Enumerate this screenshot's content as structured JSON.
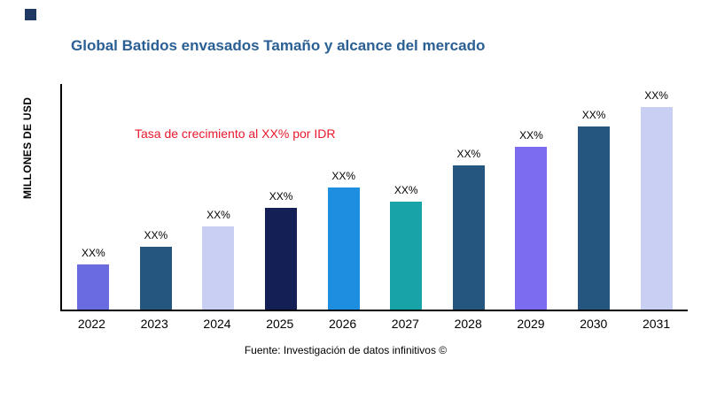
{
  "title": "Global Batidos envasados Tamaño y alcance del mercado",
  "title_color": "#2a5f94",
  "accent_square_color": "#1f3864",
  "annotation": {
    "text": "Tasa de crecimiento al XX% por IDR",
    "color": "#e8192c"
  },
  "source": "Fuente: Investigación de datos infinitivos ©",
  "chart_data": {
    "type": "bar",
    "title": "Global Batidos envasados Tamaño y alcance del mercado",
    "xlabel": "",
    "ylabel": "MILLONES DE USD",
    "categories": [
      "2022",
      "2023",
      "2024",
      "2025",
      "2026",
      "2027",
      "2028",
      "2029",
      "2030",
      "2031"
    ],
    "values": [
      20,
      28,
      37,
      45,
      54,
      48,
      64,
      72,
      81,
      90
    ],
    "bar_labels": [
      "XX%",
      "XX%",
      "XX%",
      "XX%",
      "XX%",
      "XX%",
      "XX%",
      "XX%",
      "XX%",
      "XX%"
    ],
    "bar_colors": [
      "#6b6be0",
      "#25567f",
      "#c9cff2",
      "#141f55",
      "#1e8fe0",
      "#17a3a8",
      "#25567f",
      "#7c6cf0",
      "#25567f",
      "#c9cff2"
    ],
    "ylim": [
      0,
      100
    ],
    "grid": false,
    "legend": false,
    "annotations": [
      "Tasa de crecimiento al XX% por IDR"
    ]
  }
}
